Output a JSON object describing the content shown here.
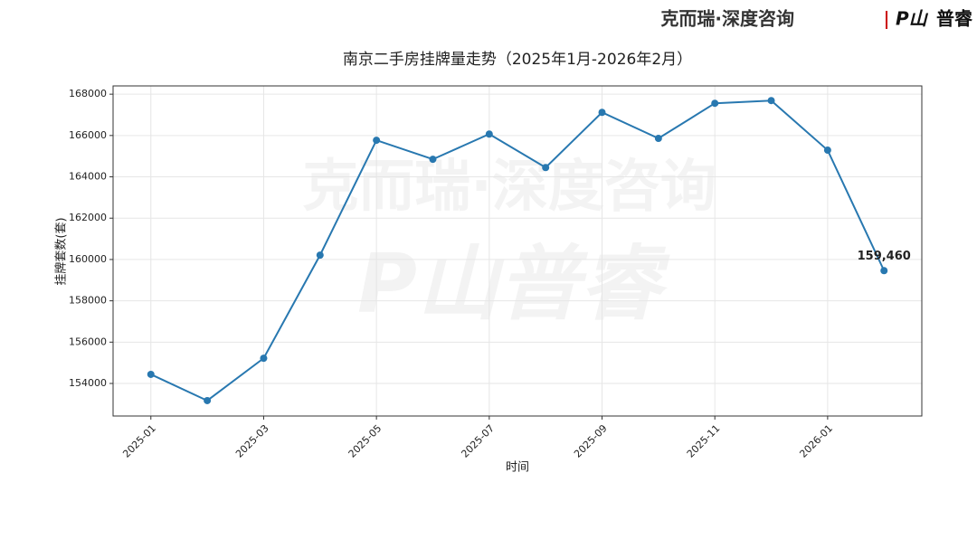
{
  "brand": {
    "left": "克而瑞·深度咨询",
    "right": "普睿",
    "logo": "P山"
  },
  "watermark": {
    "line1": "克而瑞·深度咨询",
    "line2": "P山普睿"
  },
  "chart_data": {
    "type": "line",
    "title": "南京二手房挂牌量走势（2025年1月-2026年2月）",
    "xlabel": "时间",
    "ylabel": "挂牌套数(套)",
    "x": [
      "2025-01",
      "2025-02",
      "2025-03",
      "2025-04",
      "2025-05",
      "2025-06",
      "2025-07",
      "2025-08",
      "2025-09",
      "2025-10",
      "2025-11",
      "2025-12",
      "2026-01",
      "2026-02"
    ],
    "xticks": [
      "2025-01",
      "2025-03",
      "2025-05",
      "2025-07",
      "2025-09",
      "2025-11",
      "2026-01"
    ],
    "series": [
      {
        "name": "挂牌套数",
        "color": "#2878b0",
        "values": [
          154440,
          153170,
          155220,
          160210,
          165770,
          164850,
          166070,
          164450,
          167120,
          165860,
          167560,
          167690,
          165290,
          159460
        ],
        "value_labels": [
          null,
          null,
          null,
          null,
          null,
          null,
          null,
          null,
          null,
          null,
          null,
          null,
          null,
          "159,460"
        ]
      }
    ],
    "ylim": [
      152425,
      168400
    ],
    "yticks": [
      154000,
      156000,
      158000,
      160000,
      162000,
      164000,
      166000,
      168000
    ],
    "grid": true
  }
}
